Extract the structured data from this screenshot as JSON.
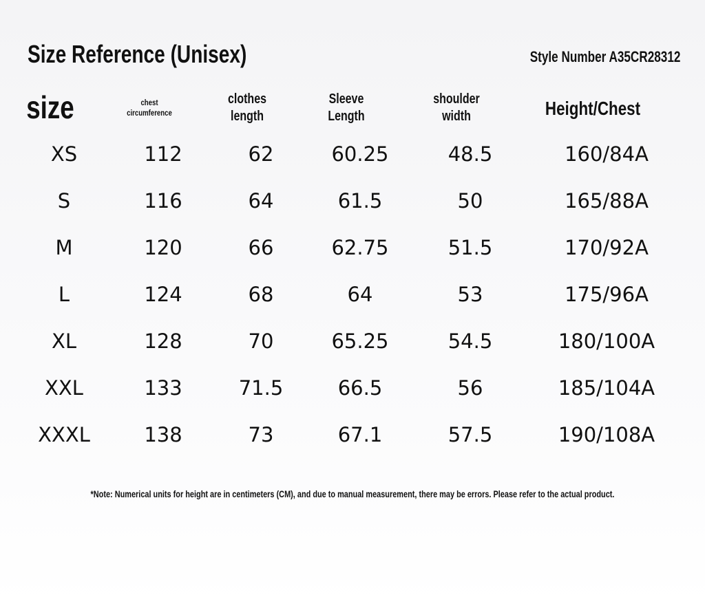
{
  "header": {
    "title": "Size Reference (Unisex)",
    "style_number": "Style Number A35CR28312"
  },
  "table": {
    "columns": [
      [
        "size"
      ],
      [
        "chest",
        "circumference"
      ],
      [
        "clothes",
        "length"
      ],
      [
        "Sleeve",
        "Length"
      ],
      [
        "shoulder",
        "width"
      ],
      [
        "Height/Chest"
      ]
    ],
    "rows": [
      [
        "XS",
        112,
        62,
        60.25,
        48.5,
        "160/84A"
      ],
      [
        "S",
        116,
        64,
        61.5,
        50,
        "165/88A"
      ],
      [
        "M",
        120,
        66,
        62.75,
        51.5,
        "170/92A"
      ],
      [
        "L",
        124,
        68,
        64,
        53,
        "175/96A"
      ],
      [
        "XL",
        128,
        70,
        65.25,
        54.5,
        "180/100A"
      ],
      [
        "XXL",
        133,
        71.5,
        66.5,
        56,
        "185/104A"
      ],
      [
        "XXXL",
        138,
        73,
        67.1,
        57.5,
        "190/108A"
      ]
    ]
  },
  "note": "*Note: Numerical units for height are in centimeters (CM), and due to manual measurement, there may be errors. Please refer to the actual product."
}
